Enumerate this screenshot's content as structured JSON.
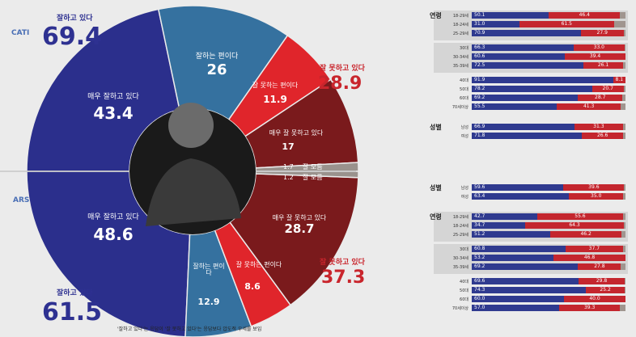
{
  "chart_data": [
    {
      "type": "pie",
      "survey_method": "CATI",
      "summary": {
        "positive_label": "잘하고 있다",
        "positive_value": "69.4",
        "negative_label": "잘 못하고 있다",
        "negative_value": "28.9"
      },
      "slices": [
        {
          "label": "매우 잘하고 있다",
          "value": 43.4,
          "color": "#2b2f8c"
        },
        {
          "label": "잘하는 편이다",
          "value": 26.0,
          "color": "#35719f"
        },
        {
          "label": "잘 못하는 편이다",
          "value": 11.9,
          "color": "#e0252b"
        },
        {
          "label": "매우 잘 못하고 있다",
          "value": 17.0,
          "color": "#7a1a1c"
        },
        {
          "label": "잘 모름",
          "value": 1.7,
          "color": "#9a928d"
        }
      ]
    },
    {
      "type": "pie",
      "survey_method": "ARS",
      "summary": {
        "positive_label": "잘하고 있다",
        "positive_value": "61.5",
        "negative_label": "잘 못하고 있다",
        "negative_value": "37.3"
      },
      "slices": [
        {
          "label": "매우 잘하고 있다",
          "value": 48.6,
          "color": "#2b2f8c"
        },
        {
          "label": "잘하는 편이다",
          "value": 12.9,
          "color": "#35719f"
        },
        {
          "label": "잘 못하는 편이다",
          "value": 8.6,
          "color": "#e0252b"
        },
        {
          "label": "매우 잘 못하고 있다",
          "value": 28.7,
          "color": "#7a1a1c"
        },
        {
          "label": "잘 모름",
          "value": 1.2,
          "color": "#9a928d"
        }
      ]
    },
    {
      "type": "bar",
      "survey_method": "CATI",
      "groups": [
        {
          "label": "연령",
          "rows": [
            {
              "label": "18-29세",
              "values": [
                50.1,
                46.4
              ]
            },
            {
              "label": "18-24세",
              "values": [
                31.0,
                61.5
              ]
            },
            {
              "label": "25-29세",
              "values": [
                70.9,
                27.9
              ]
            }
          ]
        },
        {
          "label": "",
          "rows": [
            {
              "label": "30대",
              "values": [
                66.3,
                33.0
              ]
            },
            {
              "label": "30-34세",
              "values": [
                60.6,
                39.4
              ]
            },
            {
              "label": "35-39세",
              "values": [
                72.5,
                26.1
              ]
            }
          ]
        },
        {
          "label": "",
          "rows": [
            {
              "label": "40대",
              "values": [
                91.9,
                8.1
              ]
            },
            {
              "label": "50대",
              "values": [
                78.2,
                20.7
              ]
            },
            {
              "label": "60대",
              "values": [
                69.2,
                28.7
              ]
            },
            {
              "label": "70세이상",
              "values": [
                55.5,
                41.3
              ]
            }
          ]
        },
        {
          "label": "성별",
          "rows": [
            {
              "label": "남성",
              "values": [
                66.9,
                31.3
              ]
            },
            {
              "label": "여성",
              "values": [
                71.8,
                26.6
              ]
            }
          ]
        }
      ]
    },
    {
      "type": "bar",
      "survey_method": "ARS",
      "groups": [
        {
          "label": "성별",
          "rows": [
            {
              "label": "남성",
              "values": [
                59.6,
                39.6
              ]
            },
            {
              "label": "여성",
              "values": [
                63.4,
                35.0
              ]
            }
          ]
        },
        {
          "label": "연령",
          "rows": [
            {
              "label": "18-29세",
              "values": [
                42.7,
                55.6
              ]
            },
            {
              "label": "18-24세",
              "values": [
                34.7,
                64.3
              ]
            },
            {
              "label": "25-29세",
              "values": [
                51.2,
                46.2
              ]
            }
          ]
        },
        {
          "label": "",
          "rows": [
            {
              "label": "30대",
              "values": [
                60.8,
                37.7
              ]
            },
            {
              "label": "30-34세",
              "values": [
                53.2,
                46.8
              ]
            },
            {
              "label": "35-39세",
              "values": [
                69.2,
                27.8
              ]
            }
          ]
        },
        {
          "label": "",
          "rows": [
            {
              "label": "40대",
              "values": [
                69.6,
                29.8
              ]
            },
            {
              "label": "50대",
              "values": [
                74.3,
                25.2
              ]
            },
            {
              "label": "60대",
              "values": [
                60.0,
                40.0
              ]
            },
            {
              "label": "70세이상",
              "values": [
                57.0,
                39.3
              ]
            }
          ]
        }
      ]
    }
  ],
  "footnote": "'잘하고 있다'는 응답이 '잘 못하고 있다'는 응답보다 압도적 우세를 보임",
  "center_photo_alt": "인물 사진"
}
